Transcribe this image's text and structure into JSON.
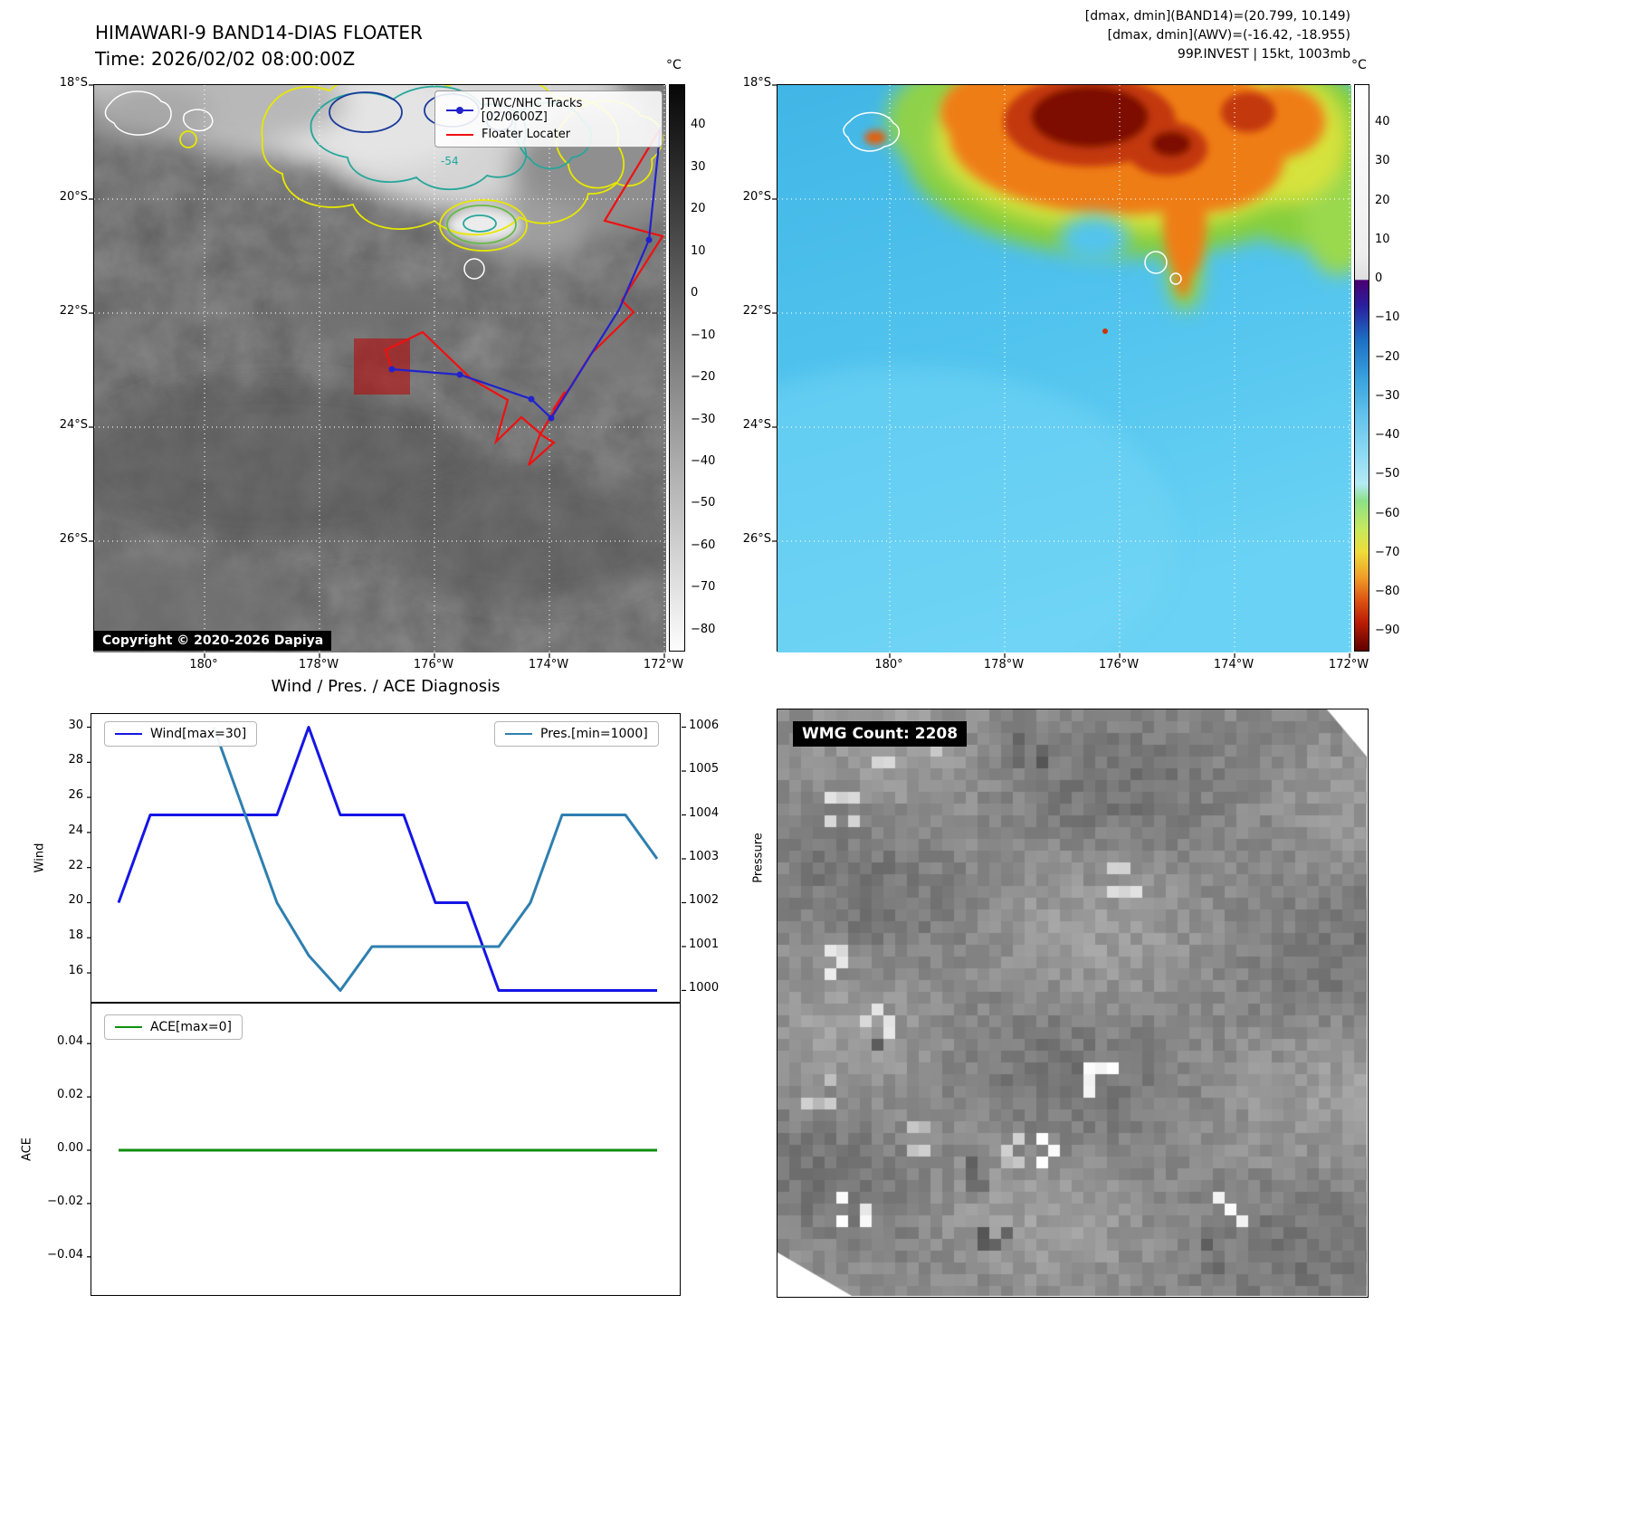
{
  "left_panel": {
    "title_line1": "HIMAWARI-9 BAND14-DIAS FLOATER",
    "title_line2": "Time: 2026/02/02 08:00:00Z",
    "legend_items": [
      {
        "label": "JTWC/NHC Tracks [02/0600Z]",
        "color": "#2222cc",
        "marker": "dot"
      },
      {
        "label": "Floater Locater",
        "color": "#ee1111",
        "marker": "none"
      }
    ],
    "contour_label": "-54",
    "copyright": "Copyright © 2020-2026 Dapiya",
    "lat_ticks": [
      "18°S",
      "20°S",
      "22°S",
      "24°S",
      "26°S"
    ],
    "lon_ticks": [
      "180°",
      "178°W",
      "176°W",
      "174°W",
      "172°W"
    ],
    "colorbar": {
      "unit": "°C",
      "ticks": [
        40,
        30,
        20,
        10,
        0,
        -10,
        -20,
        -30,
        -40,
        -50,
        -60,
        -70,
        -80
      ],
      "vmax": 50,
      "vmin": -85
    }
  },
  "right_panel": {
    "annotation_lines": [
      "[dmax, dmin](BAND14)=(20.799, 10.149)",
      "[dmax, dmin](AWV)=(-16.42, -18.955)",
      "99P.INVEST | 15kt, 1003mb"
    ],
    "lat_ticks": [
      "18°S",
      "20°S",
      "22°S",
      "24°S",
      "26°S"
    ],
    "lon_ticks": [
      "180°",
      "178°W",
      "176°W",
      "174°W",
      "172°W"
    ],
    "colorbar": {
      "unit": "°C",
      "ticks": [
        40,
        30,
        20,
        10,
        0,
        -10,
        -20,
        -30,
        -40,
        -50,
        -60,
        -70,
        -80,
        -90
      ],
      "vmax": 50,
      "vmin": -95
    }
  },
  "diagnosis": {
    "title": "Wind / Pres. / ACE Diagnosis"
  },
  "wmg_panel": {
    "count_label": "WMG Count: 2208"
  },
  "chart_data": [
    {
      "type": "line",
      "title": "Wind / Pres. / ACE Diagnosis",
      "x": [
        0,
        1,
        2,
        3,
        4,
        5,
        6,
        7,
        8,
        9,
        10,
        11,
        12,
        13,
        14,
        15,
        16,
        17
      ],
      "series": [
        {
          "name": "Wind[max=30]",
          "yaxis": "left",
          "color": "#1515e6",
          "values": [
            20,
            25,
            25,
            25,
            25,
            25,
            30,
            25,
            25,
            25,
            20,
            20,
            15,
            15,
            15,
            15,
            15,
            15
          ]
        },
        {
          "name": "Pres.[min=1000]",
          "yaxis": "right",
          "color": "#2e7fb0",
          "values": [
            null,
            null,
            null,
            1006,
            1004,
            1002,
            1000.8,
            1000,
            1001,
            1001,
            1001,
            1001,
            1001,
            1002,
            1004,
            1004,
            1004,
            1003
          ]
        }
      ],
      "ylabel_left": "Wind",
      "ylabel_right": "Pressure",
      "yticks_left": [
        16,
        18,
        20,
        22,
        24,
        26,
        28,
        30
      ],
      "yticks_right": [
        1000,
        1001,
        1002,
        1003,
        1004,
        1005,
        1006
      ],
      "ylim_left": [
        14.25,
        30.75
      ],
      "ylim_right": [
        999.7,
        1006.3
      ],
      "legend_position": "top",
      "grid": false
    },
    {
      "type": "line",
      "x": [
        0,
        17
      ],
      "series": [
        {
          "name": "ACE[max=0]",
          "color": "#0f8f0f",
          "values": [
            0,
            0
          ]
        }
      ],
      "ylabel": "ACE",
      "yticks": [
        -0.04,
        -0.02,
        0,
        0.02,
        0.04
      ],
      "ylim": [
        -0.055,
        0.055
      ],
      "grid": false
    }
  ]
}
